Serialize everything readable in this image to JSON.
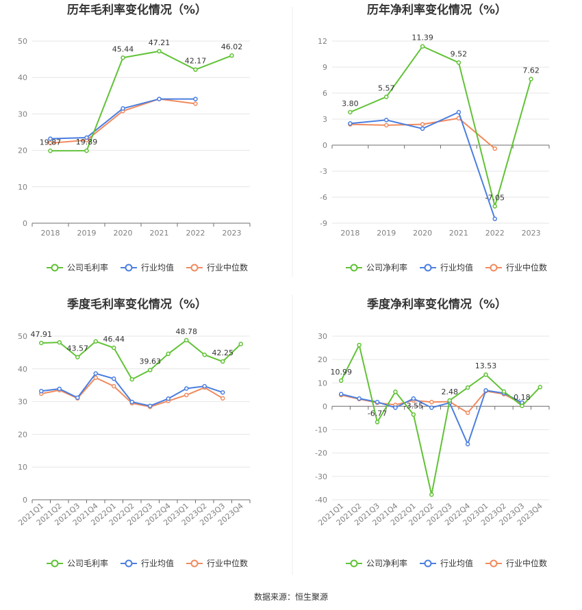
{
  "source": "数据来源：恒生聚源",
  "colors": {
    "company": "#5fc234",
    "avg": "#4a7ee0",
    "median": "#f08a5d"
  },
  "chart_data": [
    {
      "type": "line",
      "title": "历年毛利率变化情况（%）",
      "categories": [
        "2018",
        "2019",
        "2020",
        "2021",
        "2022",
        "2023"
      ],
      "ylim": [
        0,
        50
      ],
      "yticks": [
        0,
        10,
        20,
        30,
        40,
        50
      ],
      "series": [
        {
          "name": "公司毛利率",
          "key": "company",
          "values": [
            19.87,
            19.89,
            45.44,
            47.21,
            42.17,
            46.02
          ],
          "labels": [
            "19.87",
            "19.89",
            "45.44",
            "47.21",
            "42.17",
            "46.02"
          ]
        },
        {
          "name": "行业均值",
          "key": "avg",
          "values": [
            23.2,
            23.5,
            31.5,
            34.1,
            34.1,
            null
          ]
        },
        {
          "name": "行业中位数",
          "key": "median",
          "values": [
            22.0,
            22.8,
            30.8,
            34.1,
            32.8,
            null
          ]
        }
      ]
    },
    {
      "type": "line",
      "title": "历年净利率变化情况（%）",
      "categories": [
        "2018",
        "2019",
        "2020",
        "2021",
        "2022",
        "2023"
      ],
      "ylim": [
        -9,
        12
      ],
      "yticks": [
        -9,
        -6,
        -3,
        0,
        3,
        6,
        9,
        12
      ],
      "series": [
        {
          "name": "公司净利率",
          "key": "company",
          "values": [
            3.8,
            5.57,
            11.39,
            9.52,
            -7.05,
            7.62
          ],
          "labels": [
            "3.80",
            "5.57",
            "11.39",
            "9.52",
            "-7.05",
            "7.62"
          ]
        },
        {
          "name": "行业均值",
          "key": "avg",
          "values": [
            2.5,
            2.9,
            1.9,
            3.8,
            -8.5,
            null
          ]
        },
        {
          "name": "行业中位数",
          "key": "median",
          "values": [
            2.4,
            2.3,
            2.4,
            3.1,
            -0.4,
            null
          ]
        }
      ]
    },
    {
      "type": "line",
      "title": "季度毛利率变化情况（%）",
      "categories": [
        "2021Q1",
        "2021Q2",
        "2021Q3",
        "2021Q4",
        "2022Q1",
        "2022Q2",
        "2022Q3",
        "2022Q4",
        "2023Q1",
        "2023Q2",
        "2023Q3",
        "2023Q4"
      ],
      "ylim": [
        0,
        50
      ],
      "yticks": [
        0,
        10,
        20,
        30,
        40,
        50
      ],
      "series": [
        {
          "name": "公司毛利率",
          "key": "company",
          "values": [
            47.91,
            48.1,
            43.57,
            48.4,
            46.44,
            36.8,
            39.63,
            44.6,
            48.78,
            44.3,
            42.25,
            47.6
          ],
          "labels": [
            "47.91",
            "",
            "43.57",
            "",
            "46.44",
            "",
            "39.63",
            "",
            "48.78",
            "",
            "42.25",
            ""
          ]
        },
        {
          "name": "行业均值",
          "key": "avg",
          "values": [
            33.2,
            33.9,
            31.2,
            38.6,
            37.0,
            29.9,
            28.7,
            30.9,
            34.0,
            34.7,
            32.8,
            null
          ]
        },
        {
          "name": "行业中位数",
          "key": "median",
          "values": [
            32.4,
            33.5,
            31.0,
            37.3,
            34.7,
            29.5,
            28.4,
            30.2,
            32.0,
            34.3,
            31.0,
            null
          ]
        }
      ]
    },
    {
      "type": "line",
      "title": "季度净利率变化情况（%）",
      "categories": [
        "2021Q1",
        "2021Q2",
        "2021Q3",
        "2021Q4",
        "2022Q1",
        "2022Q2",
        "2022Q3",
        "2022Q4",
        "2023Q1",
        "2023Q2",
        "2023Q3",
        "2023Q4"
      ],
      "ylim": [
        -40,
        30
      ],
      "yticks": [
        -40,
        -30,
        -20,
        -10,
        0,
        10,
        20,
        30
      ],
      "series": [
        {
          "name": "公司净利率",
          "key": "company",
          "values": [
            10.99,
            26.2,
            -6.77,
            6.2,
            -3.55,
            -37.8,
            2.48,
            8.0,
            13.53,
            6.3,
            0.18,
            8.2
          ],
          "labels": [
            "10.99",
            "",
            "-6.77",
            "",
            "-3.55",
            "",
            "2.48",
            "",
            "13.53",
            "",
            "0.18",
            ""
          ]
        },
        {
          "name": "行业均值",
          "key": "avg",
          "values": [
            5.2,
            3.3,
            1.8,
            -0.6,
            3.3,
            -0.6,
            1.5,
            -16.2,
            6.8,
            5.6,
            1.6,
            null
          ]
        },
        {
          "name": "行业中位数",
          "key": "median",
          "values": [
            4.8,
            3.1,
            1.5,
            0.6,
            2.5,
            1.8,
            2.0,
            -2.8,
            6.5,
            5.2,
            1.0,
            null
          ]
        }
      ]
    }
  ]
}
